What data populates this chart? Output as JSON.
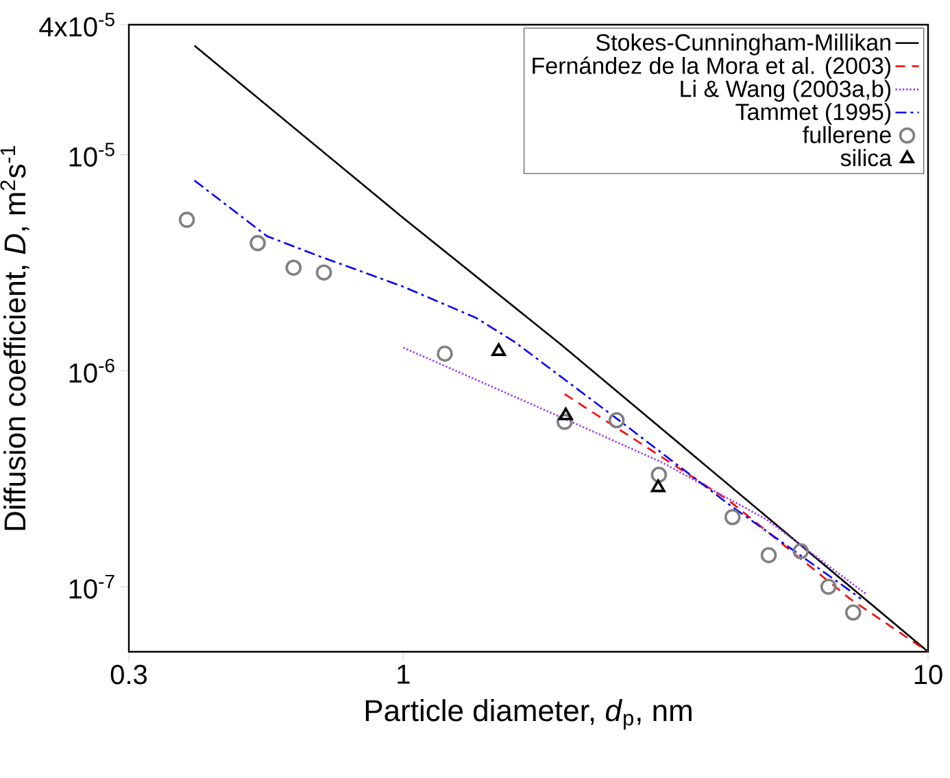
{
  "chart_data": {
    "type": "line",
    "xlabel": "Particle diameter, *d*$_{p}$, nm",
    "ylabel": "Diffusion coefficient, *D*, m$^{2}$s$^{-1}$",
    "log": "xy",
    "xlim": [
      0.3,
      10
    ],
    "xticks": [
      0.3,
      1,
      10
    ],
    "ylim": [
      5e-08,
      4e-05
    ],
    "yticks": [
      {
        "value": 1e-07,
        "label": "10$^{-7}$"
      },
      {
        "value": 1e-06,
        "label": "10$^{-6}$"
      },
      {
        "value": 1e-05,
        "label": "10$^{-5}$"
      },
      {
        "value": 4e-05,
        "label": "4x10$^{-5}$"
      }
    ],
    "legend": "top right",
    "series": [
      {
        "name": "Stokes-Cunningham-Millikan",
        "color": "#000000",
        "line_style": "solid",
        "marker": "none",
        "x": [
          0.4,
          1,
          2,
          10
        ],
        "values": [
          3.2e-05,
          5.1e-06,
          1.32e-06,
          5e-08
        ]
      },
      {
        "name": "Fernández de la Mora et al. (2003)",
        "color": "#ff0000",
        "line_style": "dashed",
        "marker": "none",
        "x": [
          2.03,
          4.18,
          7.1,
          10
        ],
        "values": [
          7.8e-07,
          2.5e-07,
          8.8e-08,
          5e-08
        ]
      },
      {
        "name": "Li & Wang (2003a,b)",
        "color": "#9933ff",
        "line_style": "dotted",
        "marker": "none",
        "x": [
          1.0,
          2.06,
          3.11,
          4.92,
          7.6
        ],
        "values": [
          1.28e-06,
          5.9e-07,
          3.77e-07,
          2.05e-07,
          9.3e-08
        ]
      },
      {
        "name": "Tammet (1995)",
        "color": "#0000ff",
        "line_style": "dashdotted",
        "marker": "none",
        "x": [
          0.4,
          0.55,
          0.69,
          1.0,
          1.375,
          1.63,
          2.65,
          4.18,
          6.97,
          7.45
        ],
        "values": [
          7.6e-06,
          4.2e-06,
          3.4e-06,
          2.45e-06,
          1.76e-06,
          1.36e-06,
          5.6e-07,
          2.4e-07,
          9.9e-08,
          8.8e-08
        ]
      },
      {
        "name": "fullerene",
        "type": "scatter",
        "color": "#808080",
        "marker": "circle",
        "x": [
          0.387,
          0.528,
          0.618,
          0.706,
          1.2,
          2.03,
          2.55,
          3.07,
          4.24,
          4.97,
          5.72,
          6.46,
          7.2
        ],
        "values": [
          5e-06,
          3.9e-06,
          3e-06,
          2.85e-06,
          1.2e-06,
          5.8e-07,
          5.9e-07,
          3.3e-07,
          2.1e-07,
          1.4e-07,
          1.46e-07,
          1e-07,
          7.6e-08
        ]
      },
      {
        "name": "silica",
        "type": "scatter",
        "color": "#000000",
        "marker": "triangle",
        "x": [
          1.52,
          2.04,
          3.06
        ],
        "values": [
          1.23e-06,
          6.2e-07,
          2.88e-07
        ]
      }
    ]
  }
}
